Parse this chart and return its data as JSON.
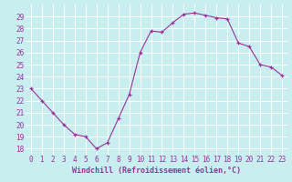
{
  "x": [
    0,
    1,
    2,
    3,
    4,
    5,
    6,
    7,
    8,
    9,
    10,
    11,
    12,
    13,
    14,
    15,
    16,
    17,
    18,
    19,
    20,
    21,
    22,
    23
  ],
  "y": [
    23,
    22,
    21,
    20,
    19.2,
    19,
    18,
    18.5,
    20.5,
    22.5,
    26,
    27.8,
    27.7,
    28.5,
    29.2,
    29.3,
    29.1,
    28.9,
    28.8,
    26.8,
    26.5,
    25,
    24.8,
    24.1
  ],
  "line_color": "#993399",
  "marker": "+",
  "background_color": "#c8eef0",
  "grid_color": "#ffffff",
  "xlabel": "Windchill (Refroidissement éolien,°C)",
  "xlabel_color": "#993399",
  "tick_color": "#993399",
  "ylim": [
    17.5,
    30.0
  ],
  "xlim": [
    -0.5,
    23.5
  ],
  "yticks": [
    18,
    19,
    20,
    21,
    22,
    23,
    24,
    25,
    26,
    27,
    28,
    29
  ],
  "xticks": [
    0,
    1,
    2,
    3,
    4,
    5,
    6,
    7,
    8,
    9,
    10,
    11,
    12,
    13,
    14,
    15,
    16,
    17,
    18,
    19,
    20,
    21,
    22,
    23
  ],
  "xtick_labels": [
    "0",
    "1",
    "2",
    "3",
    "4",
    "5",
    "6",
    "7",
    "8",
    "9",
    "10",
    "11",
    "12",
    "13",
    "14",
    "15",
    "16",
    "17",
    "18",
    "19",
    "20",
    "21",
    "22",
    "23"
  ]
}
